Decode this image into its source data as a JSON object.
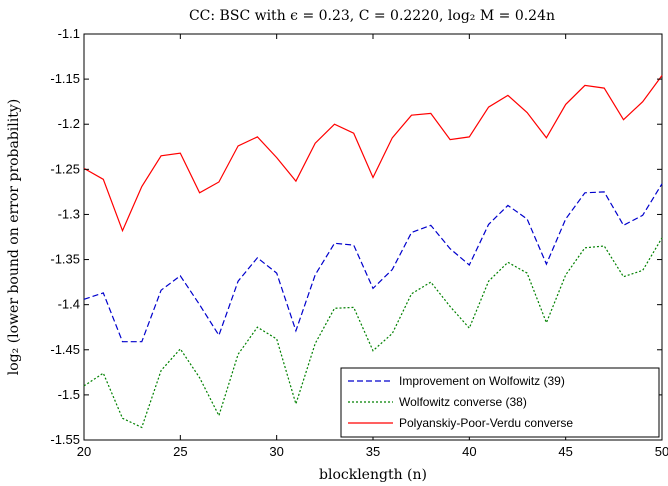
{
  "chart_data": {
    "type": "line",
    "title": "CC: BSC with ϵ = 0.23, C = 0.2220, log₂ M = 0.24n",
    "xlabel": "blocklength (n)",
    "ylabel": "log₂ (lower bound on error probability)",
    "xlim": [
      20,
      50
    ],
    "ylim": [
      -1.55,
      -1.1
    ],
    "xticks": [
      20,
      25,
      30,
      35,
      40,
      45,
      50
    ],
    "yticks": [
      -1.1,
      -1.15,
      -1.2,
      -1.25,
      -1.3,
      -1.35,
      -1.4,
      -1.45,
      -1.5,
      -1.55
    ],
    "xtick_labels": [
      "20",
      "25",
      "30",
      "35",
      "40",
      "45",
      "50"
    ],
    "ytick_labels": [
      "-1.1",
      "-1.15",
      "-1.2",
      "-1.25",
      "-1.3",
      "-1.35",
      "-1.4",
      "-1.45",
      "-1.5",
      "-1.55"
    ],
    "grid": false,
    "legend_position": "bottom-right",
    "x": [
      20,
      21,
      22,
      23,
      24,
      25,
      26,
      27,
      28,
      29,
      30,
      31,
      32,
      33,
      34,
      35,
      36,
      37,
      38,
      39,
      40,
      41,
      42,
      43,
      44,
      45,
      46,
      47,
      48,
      49,
      50
    ],
    "series": [
      {
        "name": "Improvement on Wolfowitz (39)",
        "color": "#0000cc",
        "dash": "dashed",
        "values": [
          -1.394,
          -1.387,
          -1.441,
          -1.441,
          -1.384,
          -1.368,
          -1.4,
          -1.434,
          -1.374,
          -1.348,
          -1.365,
          -1.429,
          -1.367,
          -1.332,
          -1.334,
          -1.382,
          -1.361,
          -1.32,
          -1.312,
          -1.338,
          -1.356,
          -1.311,
          -1.29,
          -1.305,
          -1.355,
          -1.305,
          -1.276,
          -1.275,
          -1.312,
          -1.301,
          -1.266
        ]
      },
      {
        "name": "Wolfowitz converse (38)",
        "color": "#008000",
        "dash": "dotted",
        "values": [
          -1.49,
          -1.476,
          -1.526,
          -1.536,
          -1.473,
          -1.449,
          -1.481,
          -1.523,
          -1.455,
          -1.425,
          -1.438,
          -1.51,
          -1.443,
          -1.404,
          -1.403,
          -1.451,
          -1.432,
          -1.388,
          -1.375,
          -1.402,
          -1.426,
          -1.374,
          -1.353,
          -1.365,
          -1.42,
          -1.367,
          -1.337,
          -1.335,
          -1.369,
          -1.362,
          -1.326
        ]
      },
      {
        "name": "Polyanskiy-Poor-Verdu converse",
        "color": "#ff0000",
        "dash": "solid",
        "values": [
          -1.249,
          -1.261,
          -1.318,
          -1.269,
          -1.235,
          -1.232,
          -1.276,
          -1.264,
          -1.224,
          -1.214,
          -1.237,
          -1.263,
          -1.221,
          -1.2,
          -1.21,
          -1.259,
          -1.215,
          -1.19,
          -1.188,
          -1.217,
          -1.214,
          -1.181,
          -1.168,
          -1.187,
          -1.215,
          -1.178,
          -1.157,
          -1.16,
          -1.195,
          -1.175,
          -1.146
        ]
      }
    ]
  }
}
